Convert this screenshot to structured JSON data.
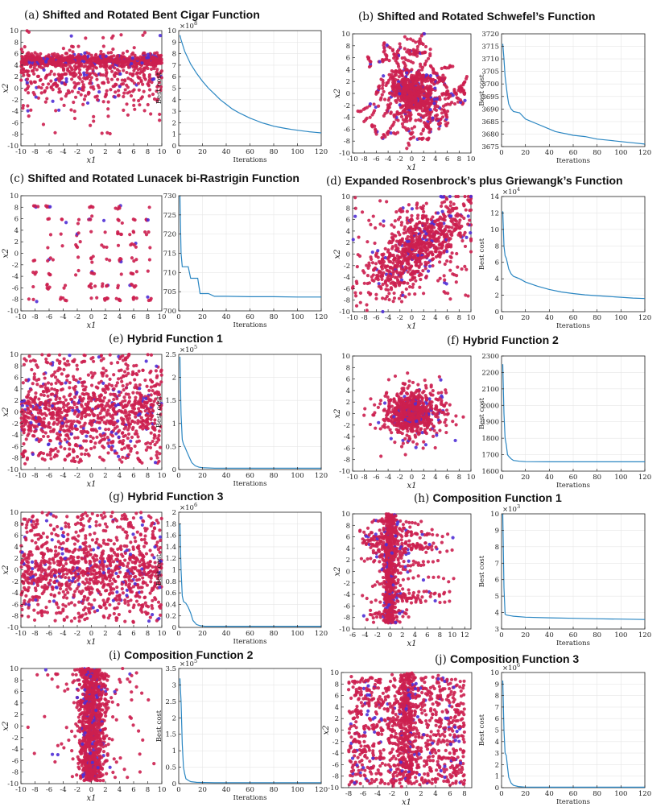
{
  "figure_colors": {
    "point_red": "#cc1f4f",
    "point_blue": "#4f2fd6",
    "curve": "#2a86c2",
    "grid": "#e6e6e6"
  },
  "chart_data": [
    {
      "id": "a",
      "label": "(a)",
      "title": "Shifted and Rotated Bent Cigar Function",
      "scatter": {
        "type": "scatter",
        "pattern": "band",
        "xlabel": "x1",
        "ylabel": "x2",
        "xlim": [
          -10,
          10
        ],
        "ylim": [
          -10,
          10
        ],
        "xticks": [
          -10,
          -8,
          -6,
          -4,
          -2,
          0,
          2,
          4,
          6,
          8,
          10
        ],
        "yticks": [
          -10,
          -8,
          -6,
          -4,
          -2,
          0,
          2,
          4,
          6,
          8,
          10
        ]
      },
      "convergence": {
        "type": "line",
        "xlabel": "Iterations",
        "ylabel": "Best cost",
        "multiplier": "×10^8",
        "mult_base": "×10",
        "mult_exp": "8",
        "xlim": [
          0,
          120
        ],
        "ylim": [
          0,
          10
        ],
        "xticks": [
          0,
          20,
          40,
          60,
          80,
          100,
          120
        ],
        "yticks": [
          0,
          1,
          2,
          3,
          4,
          5,
          6,
          7,
          8,
          9,
          10
        ],
        "x": [
          1,
          2,
          5,
          10,
          15,
          20,
          25,
          30,
          35,
          40,
          45,
          50,
          55,
          60,
          65,
          70,
          75,
          80,
          85,
          90,
          95,
          100,
          105,
          110,
          115,
          120
        ],
        "y": [
          9.6,
          9.2,
          8.2,
          7.1,
          6.3,
          5.6,
          5.0,
          4.5,
          4.0,
          3.6,
          3.2,
          2.9,
          2.65,
          2.4,
          2.2,
          2.0,
          1.85,
          1.7,
          1.6,
          1.5,
          1.42,
          1.35,
          1.28,
          1.22,
          1.17,
          1.12
        ]
      }
    },
    {
      "id": "b",
      "label": "(b)",
      "title": "Shifted and Rotated Schwefel’s Function",
      "scatter": {
        "type": "scatter",
        "pattern": "radial",
        "xlabel": "x1",
        "ylabel": "x2",
        "xlim": [
          -10,
          10
        ],
        "ylim": [
          -10,
          10
        ],
        "xticks": [
          -10,
          -8,
          -6,
          -4,
          -2,
          0,
          2,
          4,
          6,
          8,
          10
        ],
        "yticks": [
          -10,
          -8,
          -6,
          -4,
          -2,
          0,
          2,
          4,
          6,
          8,
          10
        ]
      },
      "convergence": {
        "type": "line",
        "xlabel": "Iterations",
        "ylabel": "Best cost",
        "multiplier": "",
        "mult_base": "",
        "mult_exp": "",
        "xlim": [
          0,
          120
        ],
        "ylim": [
          3675,
          3720
        ],
        "xticks": [
          0,
          20,
          40,
          60,
          80,
          100,
          120
        ],
        "yticks": [
          3675,
          3680,
          3685,
          3690,
          3695,
          3700,
          3705,
          3710,
          3715,
          3720
        ],
        "x": [
          1,
          2,
          3,
          4,
          5,
          6,
          8,
          10,
          15,
          20,
          25,
          30,
          35,
          40,
          45,
          50,
          55,
          60,
          70,
          80,
          90,
          100,
          110,
          120
        ],
        "y": [
          3716,
          3710,
          3703,
          3699,
          3695,
          3692,
          3690,
          3689,
          3688.5,
          3686,
          3685,
          3684,
          3683,
          3682,
          3681,
          3680.5,
          3680,
          3679.5,
          3679,
          3678,
          3677.5,
          3677,
          3676.5,
          3676
        ]
      }
    },
    {
      "id": "c",
      "label": "(c)",
      "title": "Shifted and Rotated Lunacek bi-Rastrigin Function",
      "scatter": {
        "type": "scatter",
        "pattern": "lattice",
        "xlabel": "x1",
        "ylabel": "x2",
        "xlim": [
          -10,
          10
        ],
        "ylim": [
          -10,
          10
        ],
        "xticks": [
          -10,
          -8,
          -6,
          -4,
          -2,
          0,
          2,
          4,
          6,
          8,
          10
        ],
        "yticks": [
          -10,
          -8,
          -6,
          -4,
          -2,
          0,
          2,
          4,
          6,
          8,
          10
        ]
      },
      "convergence": {
        "type": "line",
        "xlabel": "Iterations",
        "ylabel": "",
        "multiplier": "",
        "mult_base": "",
        "mult_exp": "",
        "xlim": [
          0,
          120
        ],
        "ylim": [
          700,
          730
        ],
        "xticks": [
          0,
          20,
          40,
          60,
          80,
          100,
          120
        ],
        "yticks": [
          700,
          705,
          710,
          715,
          720,
          725,
          730
        ],
        "x": [
          1,
          2,
          3,
          4,
          8,
          10,
          16,
          18,
          25,
          30,
          40,
          60,
          80,
          100,
          120
        ],
        "y": [
          730,
          715,
          711.5,
          711.5,
          711.5,
          708.5,
          708.5,
          704.5,
          704.5,
          703.8,
          703.8,
          703.7,
          703.7,
          703.6,
          703.6
        ]
      }
    },
    {
      "id": "d",
      "label": "(d)",
      "title": "Expanded Rosenbrock’s plus Griewangk’s Function",
      "scatter": {
        "type": "scatter",
        "pattern": "diag",
        "xlabel": "x1",
        "ylabel": "x2",
        "xlim": [
          -10,
          10
        ],
        "ylim": [
          -10,
          10
        ],
        "xticks": [
          -10,
          -8,
          -6,
          -4,
          -2,
          0,
          2,
          4,
          6,
          8,
          10
        ],
        "yticks": [
          -10,
          -8,
          -6,
          -4,
          -2,
          0,
          2,
          4,
          6,
          8,
          10
        ]
      },
      "convergence": {
        "type": "line",
        "xlabel": "Iterations",
        "ylabel": "Best cost",
        "multiplier": "×10^4",
        "mult_base": "×10",
        "mult_exp": "4",
        "xlim": [
          0,
          120
        ],
        "ylim": [
          0,
          14
        ],
        "xticks": [
          0,
          20,
          40,
          60,
          80,
          100,
          120
        ],
        "yticks": [
          0,
          2,
          4,
          6,
          8,
          10,
          12,
          14
        ],
        "x": [
          1,
          2,
          3,
          4,
          6,
          8,
          10,
          15,
          20,
          30,
          40,
          50,
          60,
          70,
          80,
          90,
          100,
          110,
          120
        ],
        "y": [
          12.2,
          8,
          6.8,
          6.5,
          5.2,
          4.6,
          4.3,
          4.0,
          3.6,
          3.1,
          2.7,
          2.4,
          2.2,
          2.05,
          1.95,
          1.85,
          1.75,
          1.65,
          1.6
        ]
      }
    },
    {
      "id": "e",
      "label": "(e)",
      "title": "Hybrid Function 1",
      "scatter": {
        "type": "scatter",
        "pattern": "uniform",
        "xlabel": "x1",
        "ylabel": "x2",
        "xlim": [
          -10,
          10
        ],
        "ylim": [
          -10,
          10
        ],
        "xticks": [
          -10,
          -8,
          -6,
          -4,
          -2,
          0,
          2,
          4,
          6,
          8,
          10
        ],
        "yticks": [
          -10,
          -8,
          -6,
          -4,
          -2,
          0,
          2,
          4,
          6,
          8,
          10
        ]
      },
      "convergence": {
        "type": "line",
        "xlabel": "Iterations",
        "ylabel": "Best cost",
        "multiplier": "×10^5",
        "mult_base": "×10",
        "mult_exp": "5",
        "xlim": [
          0,
          120
        ],
        "ylim": [
          0,
          2.5
        ],
        "xticks": [
          0,
          20,
          40,
          60,
          80,
          100,
          120
        ],
        "yticks": [
          0,
          0.5,
          1,
          1.5,
          2,
          2.5
        ],
        "x": [
          1,
          2,
          3,
          4,
          5,
          7,
          9,
          11,
          14,
          17,
          20,
          30,
          60,
          90,
          120
        ],
        "y": [
          2.45,
          1.2,
          0.65,
          0.55,
          0.5,
          0.38,
          0.26,
          0.15,
          0.08,
          0.05,
          0.04,
          0.03,
          0.03,
          0.03,
          0.03
        ]
      }
    },
    {
      "id": "f",
      "label": "(f)",
      "title": "Hybrid Function 2",
      "scatter": {
        "type": "scatter",
        "pattern": "cluster",
        "xlabel": "x1",
        "ylabel": "x2",
        "xlim": [
          -10,
          10
        ],
        "ylim": [
          -10,
          10
        ],
        "xticks": [
          -10,
          -8,
          -6,
          -4,
          -2,
          0,
          2,
          4,
          6,
          8,
          10
        ],
        "yticks": [
          -10,
          -8,
          -6,
          -4,
          -2,
          0,
          2,
          4,
          6,
          8,
          10
        ]
      },
      "convergence": {
        "type": "line",
        "xlabel": "Iterations",
        "ylabel": "Best cost",
        "multiplier": "",
        "mult_base": "",
        "mult_exp": "",
        "xlim": [
          0,
          120
        ],
        "ylim": [
          1600,
          2300
        ],
        "xticks": [
          0,
          20,
          40,
          60,
          80,
          100,
          120
        ],
        "yticks": [
          1600,
          1700,
          1800,
          1900,
          2000,
          2100,
          2200,
          2300
        ],
        "x": [
          1,
          2,
          3,
          4,
          5,
          6,
          8,
          10,
          15,
          20,
          40,
          80,
          120
        ],
        "y": [
          2250,
          1950,
          1800,
          1760,
          1700,
          1690,
          1675,
          1665,
          1660,
          1658,
          1657,
          1657,
          1657
        ]
      }
    },
    {
      "id": "g",
      "label": "(g)",
      "title": "Hybrid Function 3",
      "scatter": {
        "type": "scatter",
        "pattern": "uniform",
        "xlabel": "x1",
        "ylabel": "x2",
        "xlim": [
          -10,
          10
        ],
        "ylim": [
          -10,
          10
        ],
        "xticks": [
          -10,
          -8,
          -6,
          -4,
          -2,
          0,
          2,
          4,
          6,
          8,
          10
        ],
        "yticks": [
          -10,
          -8,
          -6,
          -4,
          -2,
          0,
          2,
          4,
          6,
          8,
          10
        ]
      },
      "convergence": {
        "type": "line",
        "xlabel": "Iterations",
        "ylabel": "Best cost",
        "multiplier": "×10^6",
        "mult_base": "×10",
        "mult_exp": "6",
        "xlim": [
          0,
          120
        ],
        "ylim": [
          0,
          2
        ],
        "xticks": [
          0,
          20,
          40,
          60,
          80,
          100,
          120
        ],
        "yticks": [
          0,
          0.2,
          0.4,
          0.6,
          0.8,
          1,
          1.2,
          1.4,
          1.6,
          1.8,
          2
        ],
        "x": [
          1,
          2,
          3,
          4,
          6,
          8,
          10,
          12,
          15,
          18,
          22,
          30,
          60,
          90,
          120
        ],
        "y": [
          1.8,
          1.0,
          0.55,
          0.45,
          0.42,
          0.35,
          0.25,
          0.12,
          0.05,
          0.03,
          0.02,
          0.02,
          0.02,
          0.02,
          0.02
        ]
      }
    },
    {
      "id": "h",
      "label": "(h)",
      "title": "Composition Function 1",
      "scatter": {
        "type": "scatter",
        "pattern": "cross",
        "xlabel": "x1",
        "ylabel": "x2",
        "xlim": [
          -6,
          13
        ],
        "ylim": [
          -10,
          10
        ],
        "xticks": [
          -6,
          -4,
          -2,
          0,
          2,
          4,
          6,
          8,
          10,
          12
        ],
        "yticks": [
          -10,
          -8,
          -6,
          -4,
          -2,
          0,
          2,
          4,
          6,
          8,
          10
        ]
      },
      "convergence": {
        "type": "line",
        "xlabel": "Iterations",
        "ylabel": "Best cost",
        "multiplier": "×10^3",
        "mult_base": "×10",
        "mult_exp": "3",
        "xlim": [
          0,
          120
        ],
        "ylim": [
          3,
          10
        ],
        "xticks": [
          0,
          20,
          40,
          60,
          80,
          100,
          120
        ],
        "yticks": [
          3,
          4,
          5,
          6,
          7,
          8,
          9,
          10
        ],
        "x": [
          1,
          2,
          3,
          4,
          6,
          10,
          20,
          40,
          60,
          80,
          100,
          120
        ],
        "y": [
          10,
          5.5,
          3.9,
          3.85,
          3.82,
          3.78,
          3.72,
          3.68,
          3.65,
          3.62,
          3.6,
          3.58
        ]
      }
    },
    {
      "id": "i",
      "label": "(i)",
      "title": "Composition Function 2",
      "scatter": {
        "type": "scatter",
        "pattern": "column",
        "xlabel": "x1",
        "ylabel": "x2",
        "xlim": [
          -10,
          10
        ],
        "ylim": [
          -10,
          10
        ],
        "xticks": [
          -10,
          -8,
          -6,
          -4,
          -2,
          0,
          2,
          4,
          6,
          8,
          10
        ],
        "yticks": [
          -10,
          -8,
          -6,
          -4,
          -2,
          0,
          2,
          4,
          6,
          8,
          10
        ]
      },
      "convergence": {
        "type": "line",
        "xlabel": "Iterations",
        "ylabel": "Best cost",
        "multiplier": "×10^5",
        "mult_base": "×10",
        "mult_exp": "5",
        "xlim": [
          0,
          120
        ],
        "ylim": [
          0,
          3.5
        ],
        "xticks": [
          0,
          20,
          40,
          60,
          80,
          100,
          120
        ],
        "yticks": [
          0,
          0.5,
          1,
          1.5,
          2,
          2.5,
          3,
          3.5
        ],
        "x": [
          1,
          2,
          3,
          4,
          5,
          6,
          8,
          10,
          15,
          30,
          60,
          90,
          120
        ],
        "y": [
          3.2,
          2.5,
          1.2,
          0.5,
          0.3,
          0.15,
          0.1,
          0.06,
          0.04,
          0.03,
          0.03,
          0.03,
          0.03
        ]
      }
    },
    {
      "id": "j",
      "label": "(j)",
      "title": "Composition Function 3",
      "scatter": {
        "type": "scatter",
        "pattern": "stripes",
        "xlabel": "x1",
        "ylabel": "x2",
        "xlim": [
          -9,
          9
        ],
        "ylim": [
          -10,
          10
        ],
        "xticks": [
          -8,
          -6,
          -4,
          -2,
          0,
          2,
          4,
          6,
          8
        ],
        "yticks": [
          -10,
          -8,
          -6,
          -4,
          -2,
          0,
          2,
          4,
          6,
          8,
          10
        ]
      },
      "convergence": {
        "type": "line",
        "xlabel": "Iterations",
        "ylabel": "Best cost",
        "multiplier": "×10^6",
        "mult_base": "×10",
        "mult_exp": "6",
        "xlim": [
          0,
          120
        ],
        "ylim": [
          0,
          10
        ],
        "xticks": [
          0,
          20,
          40,
          60,
          80,
          100,
          120
        ],
        "yticks": [
          0,
          1,
          2,
          3,
          4,
          5,
          6,
          7,
          8,
          9,
          10
        ],
        "x": [
          1,
          2,
          3,
          4,
          5,
          6,
          8,
          10,
          14,
          20,
          40,
          80,
          120
        ],
        "y": [
          9.3,
          5.0,
          3.0,
          2.8,
          1.8,
          0.9,
          0.4,
          0.2,
          0.1,
          0.05,
          0.04,
          0.04,
          0.04
        ]
      }
    }
  ]
}
